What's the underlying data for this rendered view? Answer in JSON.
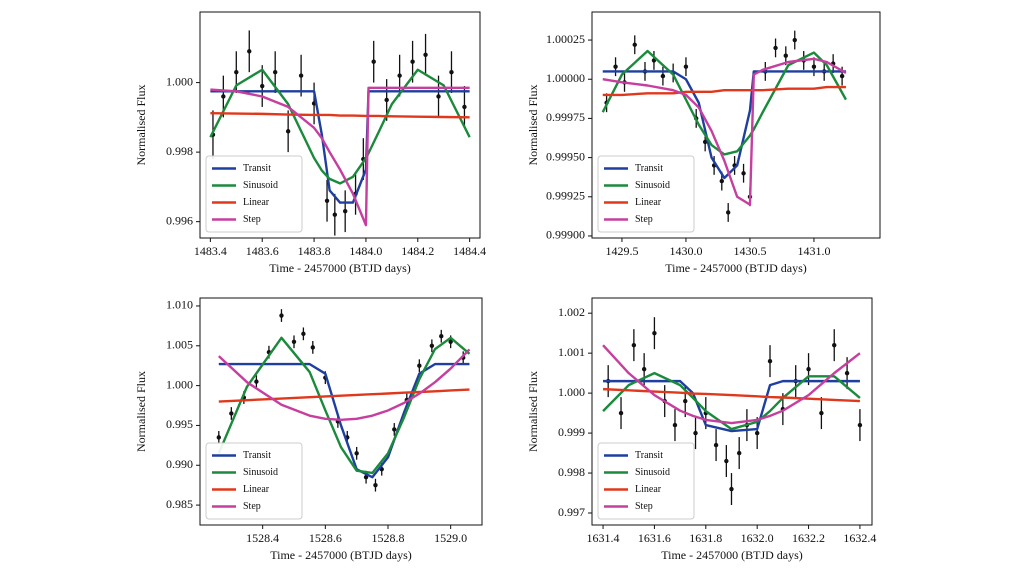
{
  "chart_data": [
    {
      "type": "line",
      "x_label": "Time - 2457000 (BTJD days)",
      "y_label": "Normalised Flux",
      "legend": "lower left",
      "xlim": [
        1483.36,
        1484.44
      ],
      "xticks": [
        1483.4,
        1483.6,
        1483.8,
        {
          "value": 1484,
          "label": "1484.0"
        },
        1484.2,
        1484.4
      ],
      "ylim": [
        0.99553,
        1.00203
      ],
      "yticks": [
        0.996,
        0.998,
        {
          "value": 1,
          "label": "1.000"
        }
      ],
      "x": [
        1483.4,
        1483.5,
        1483.6,
        1483.7,
        1483.8,
        1483.83,
        1483.86,
        1483.9,
        1483.95,
        1484.0,
        1484.01,
        1484.05,
        1484.1,
        1484.2,
        1484.3,
        1484.4
      ],
      "series": [
        {
          "name": "Transit",
          "color": "#1f3fa0",
          "values": [
            0.99975,
            0.99975,
            0.99975,
            0.99975,
            0.99975,
            0.9985,
            0.9969,
            0.99655,
            0.99655,
            0.9975,
            0.99975,
            0.99975,
            0.99975,
            0.99975,
            0.99975,
            0.99975
          ]
        },
        {
          "name": "Sinusoid",
          "color": "#1b8a3c",
          "values": [
            0.99843,
            0.99992,
            1.00037,
            0.99938,
            0.99783,
            0.99747,
            0.99723,
            0.9971,
            0.99729,
            0.99783,
            0.99797,
            0.99859,
            0.99938,
            1.00037,
            0.99992,
            0.99843
          ]
        },
        {
          "name": "Linear",
          "color": "#e0381c",
          "values": [
            0.99912,
            0.99911,
            0.9991,
            0.99908,
            0.99907,
            0.99907,
            0.99907,
            0.99905,
            0.99905,
            0.99904,
            0.99904,
            0.99904,
            0.99903,
            0.99902,
            0.99901,
            0.999
          ]
        },
        {
          "name": "Step",
          "color": "#c63e9e",
          "values": [
            0.9998,
            0.99975,
            0.9996,
            0.9993,
            0.9987,
            0.9984,
            0.998,
            0.9975,
            0.9968,
            0.9959,
            0.99985,
            0.99985,
            0.99985,
            0.99985,
            0.99985,
            0.99985
          ]
        }
      ],
      "data_points": {
        "x": [
          1483.41,
          1483.45,
          1483.5,
          1483.55,
          1483.6,
          1483.65,
          1483.7,
          1483.75,
          1483.8,
          1483.85,
          1483.88,
          1483.92,
          1483.96,
          1483.99,
          1484.03,
          1484.08,
          1484.13,
          1484.18,
          1484.23,
          1484.28,
          1484.33,
          1484.38
        ],
        "y": [
          0.9985,
          0.9996,
          1.0003,
          1.0009,
          0.9999,
          1.0003,
          0.9986,
          1.0002,
          0.9994,
          0.9966,
          0.9962,
          0.9963,
          0.9968,
          0.9978,
          1.0006,
          0.9995,
          1.0002,
          1.0006,
          1.0008,
          0.9996,
          1.0003,
          0.9993
        ],
        "yerr": [
          0.0007,
          0.0006,
          0.0006,
          0.0006,
          0.0006,
          0.0006,
          0.0006,
          0.0006,
          0.0006,
          0.0006,
          0.0006,
          0.0006,
          0.0006,
          0.0006,
          0.0006,
          0.0006,
          0.0006,
          0.0006,
          0.0006,
          0.0006,
          0.0006,
          0.0006
        ]
      }
    },
    {
      "type": "line",
      "x_label": "Time - 2457000 (BTJD days)",
      "y_label": "Normalised Flux",
      "legend": "lower left",
      "xlim": [
        1429.266,
        1431.516
      ],
      "xticks": [
        1429.5,
        {
          "value": 1430,
          "label": "1430.0"
        },
        1430.5,
        {
          "value": 1431,
          "label": "1431.0"
        }
      ],
      "ylim": [
        0.998987,
        1.000429
      ],
      "yticks": [
        {
          "value": 0.999,
          "label": "0.99900"
        },
        0.99925,
        {
          "value": 0.9995,
          "label": "0.99950"
        },
        0.99975,
        {
          "value": 1,
          "label": "1.00000"
        },
        1.00025
      ],
      "x": [
        1429.35,
        1429.5,
        1429.7,
        1429.9,
        1430.0,
        1430.1,
        1430.2,
        1430.3,
        1430.4,
        1430.5,
        1430.53,
        1430.6,
        1430.8,
        1431.0,
        1431.1,
        1431.25
      ],
      "series": [
        {
          "name": "Transit",
          "color": "#1f3fa0",
          "values": [
            1.00005,
            1.00005,
            1.00005,
            1.00005,
            1.0,
            0.99985,
            0.9995,
            0.99937,
            0.99945,
            0.9998,
            1.00005,
            1.00005,
            1.00005,
            1.00005,
            1.00005,
            1.00005
          ]
        },
        {
          "name": "Sinusoid",
          "color": "#1b8a3c",
          "values": [
            0.99979,
            1.00003,
            1.00018,
            1.00003,
            0.99987,
            0.99971,
            0.99958,
            0.99952,
            0.99954,
            0.99964,
            0.99968,
            0.99979,
            1.00009,
            1.00017,
            1.00009,
            0.99987
          ]
        },
        {
          "name": "Linear",
          "color": "#e0381c",
          "values": [
            0.9999,
            0.9999,
            0.99991,
            0.99991,
            0.99992,
            0.99992,
            0.99992,
            0.99993,
            0.99993,
            0.99993,
            0.99993,
            0.99993,
            0.99994,
            0.99994,
            0.99995,
            0.99995
          ]
        },
        {
          "name": "Step",
          "color": "#c63e9e",
          "values": [
            1.0,
            0.99998,
            0.99996,
            0.99993,
            0.9999,
            0.99982,
            0.99967,
            0.99948,
            0.99925,
            0.9992,
            1.00003,
            1.00006,
            1.00011,
            1.00013,
            1.00011,
            1.00004
          ]
        }
      ],
      "data_points": {
        "x": [
          1429.38,
          1429.45,
          1429.52,
          1429.6,
          1429.68,
          1429.75,
          1429.82,
          1429.9,
          1430.0,
          1430.08,
          1430.15,
          1430.22,
          1430.28,
          1430.33,
          1430.38,
          1430.45,
          1430.5,
          1430.62,
          1430.7,
          1430.78,
          1430.85,
          1430.92,
          1431.0,
          1431.08,
          1431.15,
          1431.22
        ],
        "y": [
          0.99985,
          1.00008,
          0.99998,
          1.00022,
          1.00005,
          1.00012,
          1.00002,
          1.00004,
          1.00008,
          0.99975,
          0.9996,
          0.99945,
          0.99935,
          0.99915,
          0.99945,
          0.9994,
          0.99925,
          1.00005,
          1.0002,
          1.00015,
          1.00025,
          1.00012,
          1.00008,
          1.00005,
          1.0001,
          1.00002
        ],
        "yerr": [
          6e-05,
          6e-05,
          6e-05,
          6e-05,
          6e-05,
          6e-05,
          6e-05,
          6e-05,
          6e-05,
          6e-05,
          6e-05,
          6e-05,
          6e-05,
          6e-05,
          6e-05,
          6e-05,
          6e-05,
          6e-05,
          6e-05,
          6e-05,
          6e-05,
          6e-05,
          6e-05,
          6e-05,
          6e-05,
          6e-05
        ]
      }
    },
    {
      "type": "line",
      "x_label": "Time - 2457000 (BTJD days)",
      "y_label": "Normalised Flux",
      "legend": "lower left",
      "xlim": [
        1528.2,
        1529.1
      ],
      "xticks": [
        1528.4,
        1528.6,
        1528.8,
        {
          "value": 1529,
          "label": "1529.0"
        }
      ],
      "ylim": [
        0.9825,
        1.011
      ],
      "yticks": [
        0.985,
        {
          "value": 0.99,
          "label": "0.990"
        },
        0.995,
        {
          "value": 1,
          "label": "1.000"
        },
        1.005,
        {
          "value": 1.01,
          "label": "1.010"
        }
      ],
      "x": [
        1528.26,
        1528.35,
        1528.46,
        1528.55,
        1528.6,
        1528.65,
        1528.7,
        1528.75,
        1528.8,
        1528.85,
        1528.9,
        1528.95,
        1529.0,
        1529.06
      ],
      "series": [
        {
          "name": "Transit",
          "color": "#1f3fa0",
          "values": [
            1.0027,
            1.0027,
            1.0027,
            1.0027,
            1.0015,
            0.995,
            0.9895,
            0.9885,
            0.991,
            0.9965,
            1.0015,
            1.0027,
            1.0027,
            1.0027
          ]
        },
        {
          "name": "Sinusoid",
          "color": "#1b8a3c",
          "values": [
            0.9915,
            0.99987,
            1.006,
            1.0017,
            0.9969,
            0.99227,
            0.98932,
            0.98903,
            0.9915,
            0.9959,
            1.00081,
            1.00458,
            1.006,
            1.00399
          ]
        },
        {
          "name": "Linear",
          "color": "#e0381c",
          "values": [
            0.998,
            0.99817,
            0.99838,
            0.99855,
            0.99864,
            0.99873,
            0.99883,
            0.99892,
            0.99901,
            0.99911,
            0.9992,
            0.99929,
            0.99939,
            0.9995
          ]
        },
        {
          "name": "Step",
          "color": "#c63e9e",
          "values": [
            1.0037,
            1.00043,
            0.9976,
            0.99623,
            0.99583,
            0.9957,
            0.99583,
            0.99623,
            0.99688,
            0.9978,
            0.99899,
            1.00043,
            1.00214,
            1.00454
          ]
        }
      ],
      "data_points": {
        "x": [
          1528.26,
          1528.3,
          1528.34,
          1528.38,
          1528.42,
          1528.46,
          1528.5,
          1528.53,
          1528.56,
          1528.6,
          1528.64,
          1528.67,
          1528.7,
          1528.73,
          1528.76,
          1528.78,
          1528.82,
          1528.86,
          1528.9,
          1528.94,
          1528.97,
          1529.0,
          1529.04
        ],
        "y": [
          0.9935,
          0.9965,
          0.9985,
          1.0005,
          1.0042,
          1.0088,
          1.0055,
          1.0065,
          1.0048,
          1.001,
          0.9955,
          0.9935,
          0.9915,
          0.9885,
          0.9875,
          0.9895,
          0.9945,
          0.9982,
          1.0025,
          1.005,
          1.0062,
          1.0055,
          1.0035
        ],
        "yerr": [
          0.0008,
          0.0008,
          0.0008,
          0.0008,
          0.0008,
          0.0008,
          0.0008,
          0.0008,
          0.0008,
          0.0008,
          0.0008,
          0.0008,
          0.0008,
          0.0008,
          0.0008,
          0.0008,
          0.0008,
          0.0008,
          0.0008,
          0.0008,
          0.0008,
          0.0008,
          0.0008
        ]
      }
    },
    {
      "type": "line",
      "x_label": "Time - 2457000 (BTJD days)",
      "y_label": "Normalised Flux",
      "legend": "lower left",
      "xlim": [
        1631.357,
        1632.447
      ],
      "xticks": [
        1631.4,
        1631.6,
        1631.8,
        {
          "value": 1632,
          "label": "1632.0"
        },
        1632.2,
        1632.4
      ],
      "ylim": [
        0.9967,
        1.00238
      ],
      "yticks": [
        0.997,
        0.998,
        0.999,
        {
          "value": 1,
          "label": "1.000"
        },
        1.001,
        1.002
      ],
      "x": [
        1631.4,
        1631.5,
        1631.6,
        1631.7,
        1631.75,
        1631.8,
        1631.9,
        1632.0,
        1632.05,
        1632.1,
        1632.2,
        1632.3,
        1632.4
      ],
      "series": [
        {
          "name": "Transit",
          "color": "#1f3fa0",
          "values": [
            1.0003,
            1.0003,
            1.0003,
            1.0003,
            1.0,
            0.9992,
            0.99905,
            0.9991,
            1.0002,
            1.0003,
            1.0003,
            1.0003,
            1.0003
          ]
        },
        {
          "name": "Sinusoid",
          "color": "#1b8a3c",
          "values": [
            0.99955,
            1.0002,
            1.0005,
            1.0002,
            0.99988,
            0.99955,
            0.9991,
            0.99928,
            0.99955,
            0.99988,
            1.00042,
            1.00042,
            0.99988
          ]
        },
        {
          "name": "Linear",
          "color": "#e0381c",
          "values": [
            1.0001,
            1.00007,
            1.00004,
            1.00001,
            0.99999,
            0.99998,
            0.99995,
            0.99992,
            0.9999,
            0.99989,
            0.99986,
            0.99983,
            0.9998
          ]
        },
        {
          "name": "Step",
          "color": "#c63e9e",
          "values": [
            1.0012,
            1.0005,
            0.99995,
            0.99956,
            0.99943,
            0.99933,
            0.99925,
            0.99933,
            0.99943,
            0.99956,
            0.99995,
            1.0005,
            1.001
          ]
        }
      ],
      "data_points": {
        "x": [
          1631.42,
          1631.47,
          1631.52,
          1631.56,
          1631.6,
          1631.64,
          1631.68,
          1631.72,
          1631.76,
          1631.8,
          1631.84,
          1631.88,
          1631.9,
          1631.93,
          1631.96,
          1632.0,
          1632.05,
          1632.1,
          1632.15,
          1632.2,
          1632.25,
          1632.3,
          1632.35,
          1632.4
        ],
        "y": [
          1.0003,
          0.9995,
          1.0012,
          1.0006,
          1.0015,
          0.9998,
          0.9992,
          0.9998,
          0.999,
          0.9995,
          0.9987,
          0.9983,
          0.9976,
          0.9985,
          0.9992,
          0.999,
          1.0008,
          0.9996,
          1.0003,
          1.0006,
          0.9995,
          1.0012,
          1.0005,
          0.9992
        ],
        "yerr": [
          0.0004,
          0.0004,
          0.0004,
          0.0004,
          0.0004,
          0.0004,
          0.0004,
          0.0004,
          0.0004,
          0.0004,
          0.0004,
          0.0004,
          0.0004,
          0.0004,
          0.0004,
          0.0004,
          0.0004,
          0.0004,
          0.0004,
          0.0004,
          0.0004,
          0.0004,
          0.0004,
          0.0004
        ]
      }
    }
  ]
}
